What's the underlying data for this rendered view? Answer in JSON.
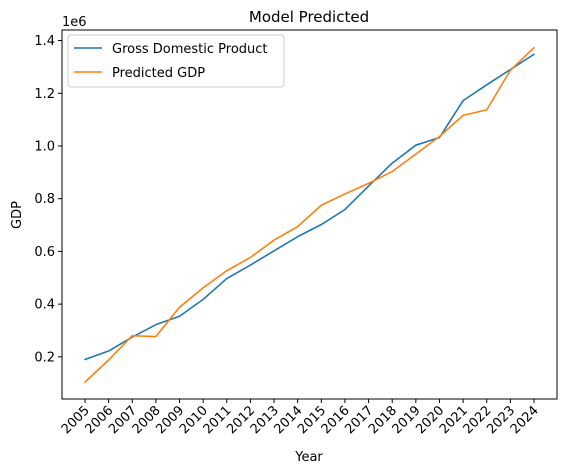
{
  "chart_data": {
    "type": "line",
    "title": "Model Predicted",
    "xlabel": "Year",
    "ylabel": "GDP",
    "y_offset_label": "1e6",
    "categories": [
      "2005",
      "2006",
      "2007",
      "2008",
      "2009",
      "2010",
      "2011",
      "2012",
      "2013",
      "2014",
      "2015",
      "2016",
      "2017",
      "2018",
      "2019",
      "2020",
      "2021",
      "2022",
      "2023",
      "2024"
    ],
    "ylim": [
      40000,
      1440000
    ],
    "yticks": [
      200000,
      400000,
      600000,
      800000,
      1000000,
      1200000,
      1400000
    ],
    "ytick_labels": [
      "0.2",
      "0.4",
      "0.6",
      "0.8",
      "1.0",
      "1.2",
      "1.4"
    ],
    "grid": false,
    "legend_position": "top-left",
    "series": [
      {
        "name": "Gross Domestic Product",
        "color": "#1f77b4",
        "values": [
          190000,
          222000,
          275000,
          322000,
          354000,
          418000,
          497000,
          548000,
          602000,
          656000,
          702000,
          759000,
          848000,
          935000,
          1003000,
          1032000,
          1172000,
          1232000,
          1290000,
          1348000
        ]
      },
      {
        "name": "Predicted GDP",
        "color": "#ff7f0e",
        "values": [
          104000,
          188000,
          280000,
          277000,
          388000,
          462000,
          527000,
          577000,
          643000,
          694000,
          775000,
          818000,
          858000,
          903000,
          969000,
          1036000,
          1116000,
          1137000,
          1287000,
          1373000
        ]
      }
    ]
  }
}
